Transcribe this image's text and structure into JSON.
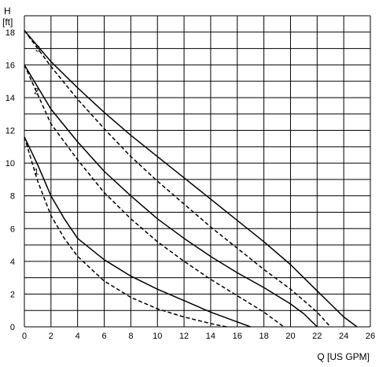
{
  "chart_data": {
    "type": "line",
    "title": "",
    "ylabel_symbol": "H",
    "ylabel_unit": "[ft]",
    "xlabel": "Q [US GPM]",
    "xlim": [
      0,
      26
    ],
    "ylim": [
      0,
      19
    ],
    "xticks": [
      0,
      2,
      4,
      6,
      8,
      10,
      12,
      14,
      16,
      18,
      20,
      22,
      24,
      26
    ],
    "yticks": [
      0,
      2,
      4,
      6,
      8,
      10,
      12,
      14,
      16,
      18
    ],
    "x_grid_step": 2,
    "y_grid_step": 1,
    "grid": true,
    "series": [
      {
        "name": "3",
        "style": "solid",
        "points": [
          [
            0,
            18.1
          ],
          [
            2,
            16.2
          ],
          [
            4,
            14.6
          ],
          [
            6,
            13.1
          ],
          [
            8,
            11.7
          ],
          [
            10,
            10.4
          ],
          [
            12,
            9.1
          ],
          [
            14,
            7.8
          ],
          [
            16,
            6.5
          ],
          [
            18,
            5.2
          ],
          [
            20,
            3.8
          ],
          [
            22,
            2.2
          ],
          [
            24,
            0.6
          ],
          [
            25.0,
            0.0
          ]
        ]
      },
      {
        "name": "3",
        "style": "dashed",
        "points": [
          [
            0,
            18.1
          ],
          [
            2,
            15.9
          ],
          [
            4,
            13.9
          ],
          [
            6,
            12.1
          ],
          [
            8,
            10.4
          ],
          [
            10,
            8.9
          ],
          [
            12,
            7.5
          ],
          [
            14,
            6.1
          ],
          [
            16,
            4.8
          ],
          [
            18,
            3.5
          ],
          [
            20,
            2.3
          ],
          [
            22,
            0.9
          ],
          [
            23.0,
            0.0
          ]
        ]
      },
      {
        "name": "2",
        "style": "solid",
        "points": [
          [
            0,
            16.0
          ],
          [
            2,
            13.3
          ],
          [
            4,
            11.3
          ],
          [
            6,
            9.5
          ],
          [
            8,
            8.0
          ],
          [
            10,
            6.6
          ],
          [
            12,
            5.4
          ],
          [
            14,
            4.3
          ],
          [
            16,
            3.3
          ],
          [
            18,
            2.4
          ],
          [
            20,
            1.4
          ],
          [
            21,
            0.8
          ],
          [
            22,
            0.0
          ]
        ]
      },
      {
        "name": "2",
        "style": "dashed",
        "points": [
          [
            0,
            16.0
          ],
          [
            2,
            12.4
          ],
          [
            4,
            10.2
          ],
          [
            6,
            8.2
          ],
          [
            8,
            6.6
          ],
          [
            10,
            5.2
          ],
          [
            12,
            4.0
          ],
          [
            14,
            2.9
          ],
          [
            16,
            1.9
          ],
          [
            18,
            0.9
          ],
          [
            19.5,
            0.0
          ]
        ]
      },
      {
        "name": "1",
        "style": "solid",
        "points": [
          [
            0,
            11.6
          ],
          [
            1,
            9.9
          ],
          [
            2,
            8.0
          ],
          [
            3,
            6.6
          ],
          [
            4,
            5.4
          ],
          [
            6,
            4.1
          ],
          [
            8,
            3.1
          ],
          [
            10,
            2.3
          ],
          [
            12,
            1.6
          ],
          [
            14,
            0.9
          ],
          [
            16,
            0.3
          ],
          [
            17,
            0.0
          ]
        ]
      },
      {
        "name": "1",
        "style": "dashed",
        "points": [
          [
            0,
            11.6
          ],
          [
            1,
            8.9
          ],
          [
            2,
            6.8
          ],
          [
            3,
            5.4
          ],
          [
            4,
            4.3
          ],
          [
            6,
            2.8
          ],
          [
            8,
            1.8
          ],
          [
            10,
            1.1
          ],
          [
            12,
            0.6
          ],
          [
            14,
            0.2
          ],
          [
            15.2,
            0.0
          ]
        ]
      }
    ],
    "curve_labels": [
      {
        "text": "3",
        "x": 1.0,
        "y": 17.0
      },
      {
        "text": "2",
        "x": 0.9,
        "y": 14.4
      },
      {
        "text": "1",
        "x": 0.9,
        "y": 9.5
      }
    ]
  }
}
